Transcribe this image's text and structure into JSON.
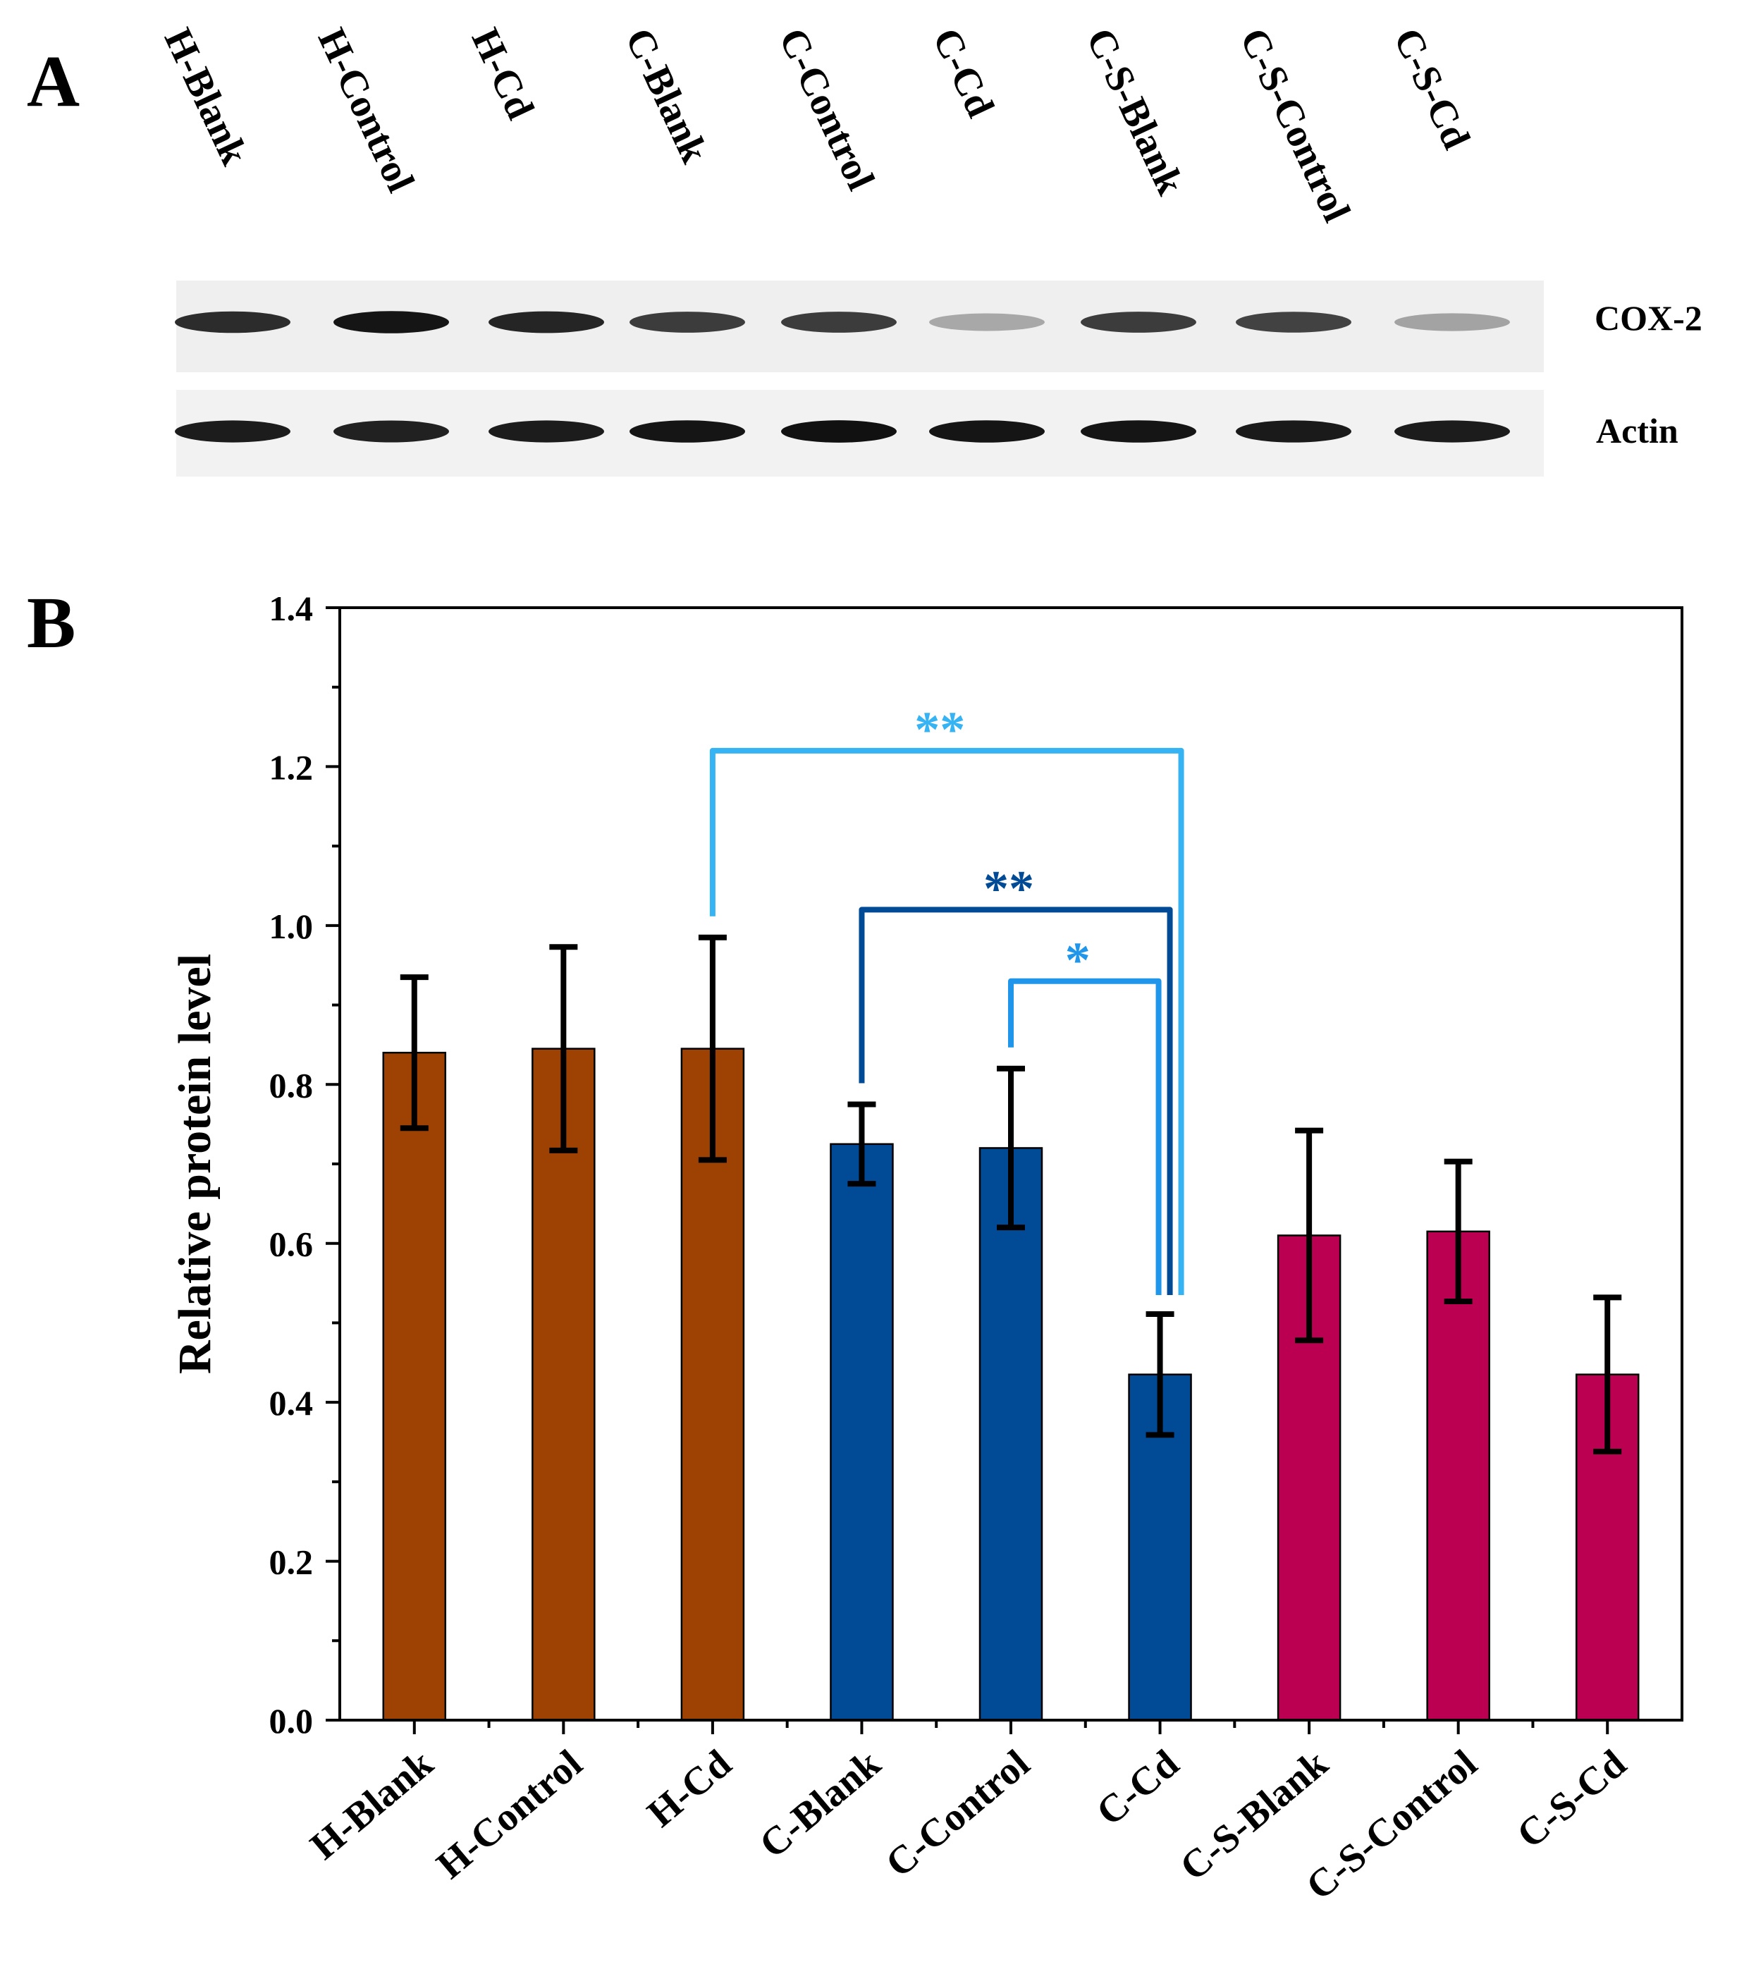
{
  "panel_a": {
    "letter": "A",
    "lanes": [
      "H-Blank",
      "H-Control",
      "H-Cd",
      "C-Blank",
      "C-Control",
      "C-Cd",
      "C-S-Blank",
      "C-S-Control",
      "C-S-Cd"
    ],
    "rows": [
      {
        "label": "COX-2",
        "intensities": [
          0.85,
          0.95,
          0.88,
          0.78,
          0.78,
          0.3,
          0.78,
          0.75,
          0.32
        ]
      },
      {
        "label": "Actin",
        "intensities": [
          0.92,
          0.9,
          0.92,
          0.95,
          0.97,
          0.95,
          0.95,
          0.93,
          0.92
        ]
      }
    ]
  },
  "panel_b": {
    "letter": "B"
  },
  "chart_data": {
    "type": "bar",
    "title": "",
    "xlabel": "",
    "ylabel": "Relative protein level",
    "ylim": [
      0,
      1.4
    ],
    "yticks": [
      "0.0",
      "0.2",
      "0.4",
      "0.6",
      "0.8",
      "1.0",
      "1.2",
      "1.4"
    ],
    "categories": [
      "H-Blank",
      "H-Control",
      "H-Cd",
      "C-Blank",
      "C-Control",
      "C-Cd",
      "C-S-Blank",
      "C-S-Control",
      "C-S-Cd"
    ],
    "values": [
      0.84,
      0.845,
      0.845,
      0.725,
      0.72,
      0.435,
      0.61,
      0.615,
      0.435
    ],
    "errors": [
      0.095,
      0.128,
      0.14,
      0.05,
      0.1,
      0.076,
      0.132,
      0.088,
      0.097
    ],
    "colors": [
      "#9e4203",
      "#9e4203",
      "#9e4203",
      "#004a96",
      "#004a96",
      "#004a96",
      "#bc0051",
      "#bc0051",
      "#bc0051"
    ],
    "significance": [
      {
        "from": "H-Cd",
        "to": "C-Cd",
        "label": "**",
        "color": "#36b3f2",
        "level": 1.22
      },
      {
        "from": "C-Blank",
        "to": "C-Cd",
        "label": "**",
        "color": "#004a96",
        "level": 1.02
      },
      {
        "from": "C-Control",
        "to": "C-Cd",
        "label": "*",
        "color": "#1f96ea",
        "level": 0.93
      }
    ]
  }
}
